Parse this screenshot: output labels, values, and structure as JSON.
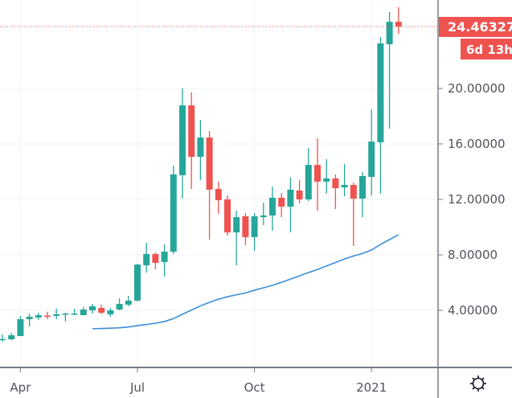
{
  "chart_data": {
    "type": "candlestick",
    "title": "",
    "xlabel": "",
    "ylabel": "",
    "x": [
      "2020-03-23",
      "2020-03-30",
      "2020-04-06",
      "2020-04-13",
      "2020-04-20",
      "2020-04-27",
      "2020-05-04",
      "2020-05-11",
      "2020-05-18",
      "2020-05-25",
      "2020-06-01",
      "2020-06-08",
      "2020-06-15",
      "2020-06-22",
      "2020-06-29",
      "2020-07-06",
      "2020-07-13",
      "2020-07-20",
      "2020-07-27",
      "2020-08-03",
      "2020-08-10",
      "2020-08-17",
      "2020-08-24",
      "2020-08-31",
      "2020-09-07",
      "2020-09-14",
      "2020-09-21",
      "2020-09-28",
      "2020-10-05",
      "2020-10-12",
      "2020-10-19",
      "2020-10-26",
      "2020-11-02",
      "2020-11-09",
      "2020-11-16",
      "2020-11-23",
      "2020-11-30",
      "2020-12-07",
      "2020-12-14",
      "2020-12-21",
      "2020-12-28",
      "2021-01-04",
      "2021-01-11",
      "2021-01-18",
      "2021-01-25"
    ],
    "ohlc": [
      [
        1.91,
        2.26,
        1.74,
        1.93
      ],
      [
        1.91,
        2.38,
        1.85,
        2.2
      ],
      [
        2.14,
        3.59,
        2.14,
        3.36
      ],
      [
        3.36,
        3.77,
        2.84,
        3.54
      ],
      [
        3.48,
        3.83,
        3.3,
        3.65
      ],
      [
        3.62,
        3.89,
        3.36,
        3.59
      ],
      [
        3.59,
        4.12,
        3.36,
        3.71
      ],
      [
        3.71,
        3.83,
        3.19,
        3.77
      ],
      [
        3.71,
        4.12,
        3.65,
        3.77
      ],
      [
        3.65,
        4.23,
        3.65,
        4.06
      ],
      [
        4.0,
        4.46,
        3.77,
        4.29
      ],
      [
        4.17,
        4.41,
        3.71,
        3.83
      ],
      [
        3.71,
        4.17,
        3.54,
        4.0
      ],
      [
        4.06,
        4.87,
        4.0,
        4.46
      ],
      [
        4.41,
        5.04,
        4.29,
        4.7
      ],
      [
        4.7,
        7.36,
        4.64,
        7.3
      ],
      [
        7.25,
        8.87,
        6.72,
        8.06
      ],
      [
        8.06,
        8.17,
        6.96,
        7.42
      ],
      [
        7.48,
        8.75,
        6.44,
        8.23
      ],
      [
        8.23,
        14.43,
        8.06,
        13.8
      ],
      [
        13.74,
        20.0,
        12.06,
        18.78
      ],
      [
        18.78,
        19.71,
        12.75,
        15.07
      ],
      [
        15.07,
        17.74,
        13.39,
        16.46
      ],
      [
        16.46,
        16.93,
        9.1,
        12.7
      ],
      [
        12.75,
        13.28,
        10.96,
        11.94
      ],
      [
        12.0,
        12.29,
        9.39,
        9.62
      ],
      [
        9.62,
        11.19,
        7.25,
        10.72
      ],
      [
        10.78,
        11.01,
        8.7,
        9.28
      ],
      [
        9.28,
        11.01,
        8.29,
        10.78
      ],
      [
        10.72,
        11.77,
        10.14,
        10.84
      ],
      [
        10.84,
        12.93,
        9.74,
        12.12
      ],
      [
        12.12,
        12.46,
        10.72,
        11.48
      ],
      [
        11.48,
        13.57,
        9.62,
        12.7
      ],
      [
        12.64,
        13.39,
        11.71,
        12.0
      ],
      [
        12.0,
        15.71,
        11.88,
        14.49
      ],
      [
        14.49,
        16.41,
        11.19,
        13.28
      ],
      [
        13.28,
        14.9,
        12.41,
        13.51
      ],
      [
        13.51,
        13.8,
        11.3,
        12.81
      ],
      [
        12.87,
        14.55,
        12.23,
        13.04
      ],
      [
        13.04,
        13.22,
        8.64,
        12.06
      ],
      [
        12.06,
        13.97,
        10.72,
        13.68
      ],
      [
        13.62,
        18.49,
        12.29,
        16.17
      ],
      [
        16.12,
        23.71,
        12.41,
        23.25
      ],
      [
        23.19,
        25.51,
        17.1,
        24.81
      ],
      [
        24.81,
        25.86,
        23.94,
        24.46
      ]
    ],
    "moving_average": [
      null,
      null,
      null,
      null,
      null,
      null,
      null,
      null,
      null,
      null,
      2.67,
      2.69,
      2.71,
      2.74,
      2.8,
      2.9,
      2.98,
      3.07,
      3.19,
      3.4,
      3.72,
      4.02,
      4.32,
      4.58,
      4.8,
      4.98,
      5.12,
      5.25,
      5.45,
      5.62,
      5.8,
      6.02,
      6.25,
      6.49,
      6.72,
      6.95,
      7.2,
      7.45,
      7.7,
      7.92,
      8.1,
      8.35,
      8.75,
      9.1,
      9.45
    ],
    "ylim": [
      -0.12,
      26.38
    ],
    "y_ticks": [
      {
        "value": 4,
        "label": "4.00000"
      },
      {
        "value": 8,
        "label": "8.00000"
      },
      {
        "value": 12,
        "label": "12.00000"
      },
      {
        "value": 16,
        "label": "16.00000"
      },
      {
        "value": 20,
        "label": "20.00000"
      }
    ],
    "x_ticks": [
      {
        "value": "2020-04-06",
        "label": "Apr"
      },
      {
        "value": "2020-07-06",
        "label": "Jul"
      },
      {
        "value": "2020-10-05",
        "label": "Oct"
      },
      {
        "value": "2021-01-04",
        "label": "2021"
      }
    ],
    "last_price": {
      "value": 24.46327,
      "label": "24.46327",
      "countdown": "6d 13h"
    },
    "grid": true,
    "colors": {
      "up": "#26a69a",
      "down": "#ef5350",
      "ma": "#3b8fd9",
      "grid": "#f0f3fa",
      "axis": "#787b86",
      "text": "#50535e"
    }
  },
  "settings_icon": "gear-icon"
}
